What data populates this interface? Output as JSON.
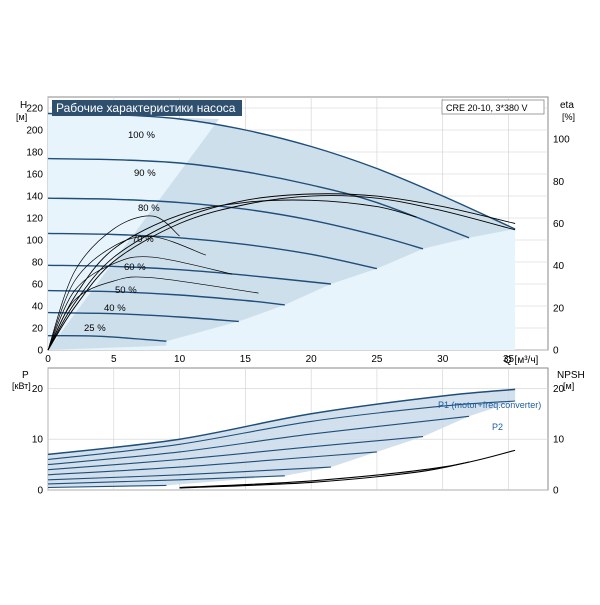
{
  "colors": {
    "curve": "#1f4e79",
    "fill_light": "#e8f4fc",
    "fill_mid": "#c9dbe9",
    "grid": "#d0d0d0",
    "title_bg": "#2f4f6f",
    "p1_label": "#1f5fa0",
    "black": "#000000"
  },
  "chart_data": [
    {
      "type": "line",
      "title": "Рабочие характеристики насоса",
      "model_label": "CRE 20-10, 3*380 V",
      "ylabel_main": "H",
      "yunit_main": "[м]",
      "ylabel_right": "eta",
      "yunit_right": "[%]",
      "xlabel": "Q [м³/ч]",
      "xlim": [
        0,
        38
      ],
      "ylim": [
        0,
        230
      ],
      "y2lim": [
        0,
        120
      ],
      "xticks": [
        0,
        5,
        10,
        15,
        20,
        25,
        30,
        35
      ],
      "yticks": [
        0,
        20,
        40,
        60,
        80,
        100,
        120,
        140,
        160,
        180,
        200,
        220
      ],
      "y2ticks": [
        0,
        20,
        40,
        60,
        80,
        100
      ],
      "grid": true,
      "speed_curves": [
        {
          "label": "100 %",
          "x": [
            0,
            5,
            10,
            15,
            20,
            25,
            30,
            35.5
          ],
          "y": [
            215,
            214,
            210,
            200,
            185,
            165,
            140,
            110
          ]
        },
        {
          "label": "90 %",
          "x": [
            0,
            5,
            10,
            15,
            20,
            25,
            32
          ],
          "y": [
            174,
            173,
            170,
            162,
            150,
            134,
            102
          ]
        },
        {
          "label": "80 %",
          "x": [
            0,
            5,
            10,
            15,
            20,
            25,
            28.5
          ],
          "y": [
            138,
            137,
            134,
            128,
            118,
            104,
            92
          ]
        },
        {
          "label": "70 %",
          "x": [
            0,
            5,
            10,
            15,
            20,
            25
          ],
          "y": [
            106,
            105,
            102,
            96,
            87,
            74
          ]
        },
        {
          "label": "60 %",
          "x": [
            0,
            5,
            10,
            15,
            21.5
          ],
          "y": [
            77,
            76,
            73,
            68,
            60
          ]
        },
        {
          "label": "50 %",
          "x": [
            0,
            5,
            10,
            15,
            18
          ],
          "y": [
            54,
            53,
            50,
            45,
            41
          ]
        },
        {
          "label": "40 %",
          "x": [
            0,
            5,
            10,
            14.5
          ],
          "y": [
            34,
            33,
            30,
            26
          ]
        },
        {
          "label": "25 %",
          "x": [
            0,
            4,
            9
          ],
          "y": [
            13,
            12.5,
            8
          ]
        }
      ],
      "efficiency_curves": [
        {
          "x": [
            0,
            2,
            5,
            10,
            15,
            20,
            25,
            30,
            35.5
          ],
          "y": [
            0,
            22,
            44,
            62,
            71,
            74,
            73,
            68,
            60
          ]
        },
        {
          "x": [
            0,
            2,
            5,
            10,
            15,
            20,
            25,
            30,
            35.5
          ],
          "y": [
            0,
            20,
            42,
            60,
            69,
            73,
            72,
            66,
            57
          ]
        },
        {
          "x": [
            0,
            2,
            5,
            10,
            15,
            20,
            25,
            28
          ],
          "y": [
            0,
            25,
            48,
            64,
            70,
            71,
            68,
            63
          ]
        }
      ]
    },
    {
      "type": "line",
      "ylabel_main": "P",
      "yunit_main": "[кВт]",
      "ylabel_right": "NPSH",
      "yunit_right": "[м]",
      "xlim": [
        0,
        38
      ],
      "ylim": [
        0,
        24
      ],
      "yticks": [
        0,
        10,
        20
      ],
      "y2ticks": [
        0,
        10,
        20
      ],
      "grid": true,
      "series_labels": [
        "P1 (motor+freq.converter)",
        "P2"
      ],
      "power_curves": [
        {
          "x": [
            0,
            10,
            20,
            30,
            35.5
          ],
          "y": [
            7,
            10,
            15,
            18.5,
            19.8
          ]
        },
        {
          "x": [
            0,
            10,
            20,
            30,
            35.5
          ],
          "y": [
            6,
            9,
            13.5,
            16.5,
            17.5
          ]
        },
        {
          "x": [
            0,
            10,
            20,
            32
          ],
          "y": [
            5,
            7.5,
            11,
            14.5
          ]
        },
        {
          "x": [
            0,
            10,
            20,
            28.5
          ],
          "y": [
            4,
            6,
            8.5,
            10.5
          ]
        },
        {
          "x": [
            0,
            10,
            20,
            25
          ],
          "y": [
            3,
            4.5,
            6.5,
            7.5
          ]
        },
        {
          "x": [
            0,
            10,
            21.5
          ],
          "y": [
            2,
            3,
            4.5
          ]
        },
        {
          "x": [
            0,
            10,
            18
          ],
          "y": [
            1.2,
            2,
            2.8
          ]
        },
        {
          "x": [
            0,
            9
          ],
          "y": [
            0.5,
            0.9
          ]
        }
      ],
      "npsh_curves": [
        {
          "x": [
            10,
            20,
            30,
            35.5
          ],
          "y": [
            0.5,
            1.8,
            4.5,
            7.8
          ]
        },
        {
          "x": [
            10,
            20,
            28,
            32
          ],
          "y": [
            0.4,
            1.5,
            3.5,
            5.5
          ]
        }
      ]
    }
  ]
}
